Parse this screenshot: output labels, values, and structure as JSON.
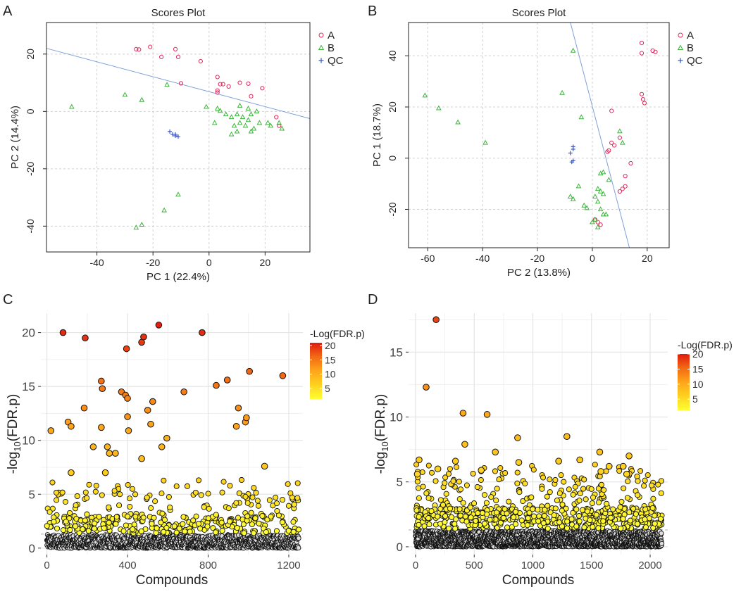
{
  "chart_data": [
    {
      "panel": "A",
      "type": "scatter",
      "title": "Scores Plot",
      "xlabel": "PC 1 (22.4%)",
      "ylabel": "PC 2 (14.4%)",
      "xlim": [
        -58,
        36
      ],
      "ylim": [
        -49,
        31
      ],
      "xticks": [
        -40,
        -20,
        0,
        20
      ],
      "yticks": [
        -40,
        -20,
        0,
        20
      ],
      "tick_labels_x": [
        "-40",
        "-20",
        "0",
        "20"
      ],
      "tick_labels_y": [
        "-40",
        "-20",
        "0",
        "20"
      ],
      "legend": [
        {
          "label": "A",
          "marker": "circle",
          "color": "#e0285a"
        },
        {
          "label": "B",
          "marker": "triangle",
          "color": "#3cb43c"
        },
        {
          "label": "QC",
          "marker": "plus",
          "color": "#3c5ac8"
        }
      ],
      "legend_position": "top-right",
      "line": {
        "x": [
          -58,
          36
        ],
        "y": [
          22,
          -2.5
        ],
        "color": "#7fa0d8"
      },
      "series": [
        {
          "name": "A",
          "points": [
            [
              -26,
              21.7
            ],
            [
              -25,
              21.6
            ],
            [
              -21,
              22.5
            ],
            [
              -17,
              19
            ],
            [
              -12,
              21.7
            ],
            [
              -11,
              19
            ],
            [
              -3,
              17.5
            ],
            [
              -10,
              9.8
            ],
            [
              3,
              12
            ],
            [
              4,
              9.5
            ],
            [
              5,
              9.5
            ],
            [
              7,
              8.7
            ],
            [
              3,
              7.3
            ],
            [
              3,
              6.6
            ],
            [
              11,
              10
            ],
            [
              14,
              9.7
            ],
            [
              15,
              5.3
            ],
            [
              19,
              8.1
            ],
            [
              24,
              -2
            ],
            [
              25,
              -5
            ]
          ]
        },
        {
          "name": "B",
          "points": [
            [
              -49,
              1.6
            ],
            [
              -30,
              5.8
            ],
            [
              -24,
              4
            ],
            [
              -15,
              9.3
            ],
            [
              -1,
              1.6
            ],
            [
              3,
              1
            ],
            [
              4,
              0.2
            ],
            [
              2,
              -4
            ],
            [
              6,
              -1
            ],
            [
              8,
              -2
            ],
            [
              10,
              -1
            ],
            [
              12,
              -2
            ],
            [
              15,
              -1
            ],
            [
              9,
              -5
            ],
            [
              11,
              -4
            ],
            [
              13,
              -5
            ],
            [
              14,
              -3
            ],
            [
              16,
              -6
            ],
            [
              8,
              -8
            ],
            [
              10,
              -7
            ],
            [
              15,
              -7
            ],
            [
              18,
              -4
            ],
            [
              21,
              -4
            ],
            [
              22,
              -5
            ],
            [
              25,
              -4
            ],
            [
              26,
              -6
            ],
            [
              11,
              2
            ],
            [
              14,
              1
            ],
            [
              17,
              0
            ],
            [
              -11,
              -29
            ],
            [
              -16,
              -34.5
            ],
            [
              -24,
              -39.5
            ],
            [
              -26,
              -40.5
            ]
          ]
        },
        {
          "name": "QC",
          "points": [
            [
              -14,
              -7
            ],
            [
              -13,
              -8
            ],
            [
              -12,
              -8.5
            ],
            [
              -11,
              -8.8
            ],
            [
              -12,
              -8
            ]
          ]
        }
      ]
    },
    {
      "panel": "B",
      "type": "scatter",
      "title": "Scores Plot",
      "xlabel": "PC 2 (13.8%)",
      "ylabel": "PC 1 (18.7%)",
      "xlim": [
        -67,
        28
      ],
      "ylim": [
        -35,
        53
      ],
      "xticks": [
        -60,
        -40,
        -20,
        0,
        20
      ],
      "yticks": [
        -20,
        0,
        20,
        40
      ],
      "tick_labels_x": [
        "-60",
        "-40",
        "-20",
        "0",
        "20"
      ],
      "tick_labels_y": [
        "-20",
        "0",
        "20",
        "40"
      ],
      "legend": [
        {
          "label": "A",
          "marker": "circle",
          "color": "#e0285a"
        },
        {
          "label": "B",
          "marker": "triangle",
          "color": "#3cb43c"
        },
        {
          "label": "QC",
          "marker": "plus",
          "color": "#3c5ac8"
        }
      ],
      "legend_position": "top-right",
      "line": {
        "x": [
          -8,
          13.5
        ],
        "y": [
          53,
          -35
        ],
        "color": "#7fa0d8"
      },
      "series": [
        {
          "name": "A",
          "points": [
            [
              18,
              45
            ],
            [
              18,
              41
            ],
            [
              22,
              42
            ],
            [
              23,
              41.5
            ],
            [
              18,
              25
            ],
            [
              18.5,
              23
            ],
            [
              19,
              21.5
            ],
            [
              7,
              18.5
            ],
            [
              10,
              8
            ],
            [
              8,
              5
            ],
            [
              7,
              6
            ],
            [
              6,
              3
            ],
            [
              5.5,
              2.5
            ],
            [
              14,
              -2
            ],
            [
              12,
              -7
            ],
            [
              11,
              -12
            ],
            [
              12,
              -11
            ],
            [
              10,
              -13
            ],
            [
              1,
              -24
            ],
            [
              2,
              -25
            ],
            [
              3,
              -26
            ]
          ]
        },
        {
          "name": "B",
          "points": [
            [
              -7,
              42
            ],
            [
              -11,
              25.5
            ],
            [
              -61,
              24.5
            ],
            [
              -56,
              19.5
            ],
            [
              -49,
              14
            ],
            [
              -39,
              6
            ],
            [
              -4,
              16
            ],
            [
              10,
              10.5
            ],
            [
              11,
              6
            ],
            [
              6,
              -8.5
            ],
            [
              3,
              -6
            ],
            [
              4,
              -5.5
            ],
            [
              -5,
              -11
            ],
            [
              -8,
              -15
            ],
            [
              -7,
              -16
            ],
            [
              2,
              -12
            ],
            [
              3,
              -13
            ],
            [
              4,
              -14
            ],
            [
              2,
              -17
            ],
            [
              -3,
              -18.5
            ],
            [
              -2,
              -19.5
            ],
            [
              3,
              -20
            ],
            [
              4,
              -22
            ],
            [
              5,
              -22
            ],
            [
              1,
              -24
            ],
            [
              0,
              -25
            ],
            [
              2,
              -27
            ],
            [
              1,
              -15
            ]
          ]
        },
        {
          "name": "QC",
          "points": [
            [
              -7,
              4.5
            ],
            [
              -7,
              3.5
            ],
            [
              -8,
              2
            ],
            [
              -7,
              -1
            ],
            [
              -7.5,
              -1.5
            ]
          ]
        }
      ]
    },
    {
      "panel": "C",
      "type": "scatter",
      "xlabel": "Compounds",
      "ylabel": "-log10(FDR.p)",
      "ylabel_parts": {
        "pre": "-log",
        "sub": "10",
        "post": "(FDR.p)"
      },
      "xlim": [
        -30,
        1270
      ],
      "ylim": [
        -0.6,
        21.8
      ],
      "xticks": [
        0,
        400,
        800,
        1200
      ],
      "yticks": [
        0,
        5,
        10,
        15,
        20
      ],
      "tick_labels_x": [
        "0",
        "400",
        "800",
        "1200"
      ],
      "tick_labels_y": [
        "0",
        "5",
        "10",
        "15",
        "20"
      ],
      "threshold": 1.3,
      "n_compounds": 1250,
      "colorbar": {
        "title": "-Log(FDR.p)",
        "min": 1.3,
        "max": 21,
        "ticks": [
          20,
          15,
          10,
          5
        ],
        "tick_labels": [
          "20",
          "15",
          "10",
          "5"
        ],
        "colors": [
          "#ffff33",
          "#ffd21e",
          "#ffa51a",
          "#f26a14",
          "#e01a0f"
        ]
      },
      "highlight_points": [
        [
          80,
          20
        ],
        [
          190,
          19.5
        ],
        [
          395,
          18.5
        ],
        [
          470,
          19.1
        ],
        [
          480,
          19.6
        ],
        [
          555,
          20.7
        ],
        [
          770,
          20
        ],
        [
          270,
          15.5
        ],
        [
          275,
          14.8
        ],
        [
          370,
          14.5
        ],
        [
          390,
          14.2
        ],
        [
          400,
          13.9
        ],
        [
          185,
          13
        ],
        [
          525,
          13.6
        ],
        [
          500,
          12.8
        ],
        [
          950,
          13
        ],
        [
          1005,
          16.4
        ],
        [
          1170,
          16
        ],
        [
          840,
          15.1
        ],
        [
          895,
          15.6
        ],
        [
          105,
          11.7
        ],
        [
          120,
          11.3
        ],
        [
          270,
          11.2
        ],
        [
          400,
          12.2
        ],
        [
          405,
          10.9
        ],
        [
          515,
          11.5
        ],
        [
          20,
          10.9
        ],
        [
          940,
          11.3
        ],
        [
          985,
          11.7
        ],
        [
          990,
          12.1
        ],
        [
          595,
          10.2
        ],
        [
          230,
          9.4
        ],
        [
          300,
          9.4
        ],
        [
          310,
          8.8
        ],
        [
          340,
          8.8
        ],
        [
          570,
          9.4
        ],
        [
          680,
          14.5
        ],
        [
          470,
          8.3
        ],
        [
          1080,
          7.6
        ],
        [
          120,
          7
        ],
        [
          290,
          7
        ]
      ]
    },
    {
      "panel": "D",
      "type": "scatter",
      "xlabel": "Compounds",
      "ylabel": "-log10(FDR.p)",
      "ylabel_parts": {
        "pre": "-log",
        "sub": "10",
        "post": "(FDR.p)"
      },
      "xlim": [
        -60,
        2150
      ],
      "ylim": [
        -0.6,
        18
      ],
      "xticks": [
        0,
        500,
        1000,
        1500,
        2000
      ],
      "yticks": [
        0,
        5,
        10,
        15
      ],
      "tick_labels_x": [
        "0",
        "500",
        "1000",
        "1500",
        "2000"
      ],
      "tick_labels_y": [
        "0",
        "5",
        "10",
        "15"
      ],
      "threshold": 1.3,
      "n_compounds": 2100,
      "colorbar": {
        "title": "-Log(FDR.p)",
        "min": 1.3,
        "max": 20,
        "ticks": [
          20,
          15,
          10,
          5
        ],
        "tick_labels": [
          "20",
          "15",
          "10",
          "5"
        ],
        "colors": [
          "#ffff33",
          "#ffd21e",
          "#ffa51a",
          "#f26a14",
          "#e01a0f"
        ]
      },
      "highlight_points": [
        [
          175,
          17.5
        ],
        [
          90,
          12.3
        ],
        [
          405,
          10.3
        ],
        [
          610,
          10.2
        ],
        [
          420,
          7.9
        ],
        [
          870,
          8.4
        ],
        [
          1290,
          8.5
        ],
        [
          680,
          7.3
        ],
        [
          1570,
          7.3
        ],
        [
          1820,
          7
        ],
        [
          1770,
          6.2
        ],
        [
          30,
          6.7
        ],
        [
          15,
          5.6
        ],
        [
          190,
          6
        ],
        [
          340,
          6.6
        ],
        [
          560,
          5.9
        ],
        [
          880,
          6.5
        ],
        [
          1220,
          6.6
        ],
        [
          1400,
          6.7
        ],
        [
          1580,
          5.8
        ],
        [
          1650,
          6.2
        ],
        [
          1800,
          5.6
        ]
      ]
    }
  ]
}
